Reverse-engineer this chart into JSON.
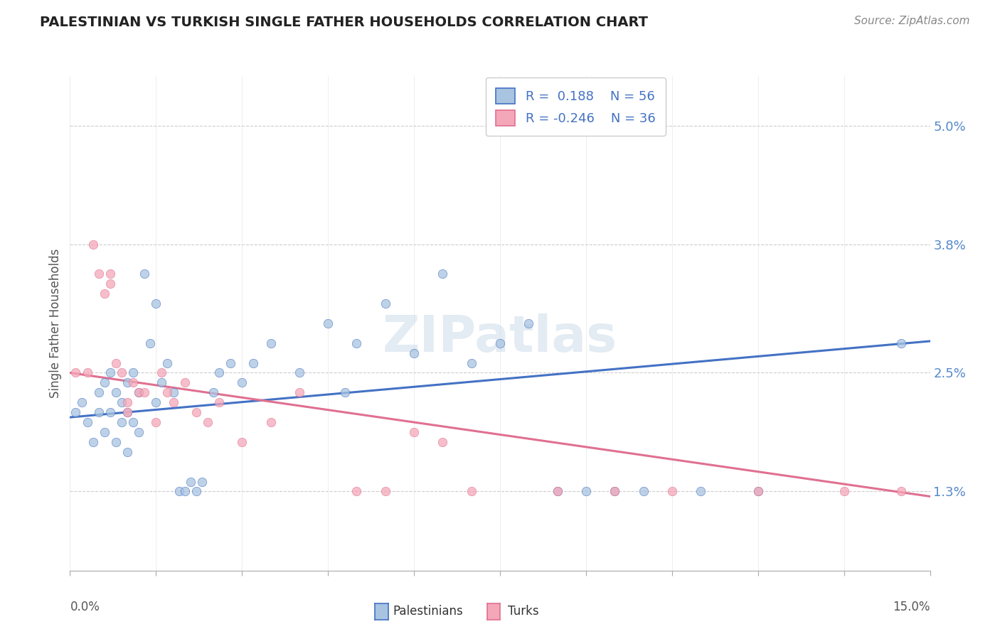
{
  "title": "PALESTINIAN VS TURKISH SINGLE FATHER HOUSEHOLDS CORRELATION CHART",
  "source": "Source: ZipAtlas.com",
  "ylabel": "Single Father Households",
  "yticks": [
    1.3,
    2.5,
    3.8,
    5.0
  ],
  "xlim": [
    0.0,
    15.0
  ],
  "ylim": [
    0.5,
    5.5
  ],
  "r_palestinian": 0.188,
  "n_palestinian": 56,
  "r_turkish": -0.246,
  "n_turkish": 36,
  "palestinian_color": "#a8c4e0",
  "turkish_color": "#f4a7b9",
  "palestinian_line_color": "#4472c4",
  "turkish_line_color": "#e07090",
  "watermark": "ZIPatlas",
  "palestinian_x": [
    0.1,
    0.2,
    0.3,
    0.4,
    0.5,
    0.5,
    0.6,
    0.6,
    0.7,
    0.7,
    0.8,
    0.8,
    0.9,
    0.9,
    1.0,
    1.0,
    1.0,
    1.1,
    1.1,
    1.2,
    1.2,
    1.3,
    1.4,
    1.5,
    1.5,
    1.6,
    1.7,
    1.8,
    1.9,
    2.0,
    2.1,
    2.2,
    2.3,
    2.5,
    2.6,
    2.8,
    3.0,
    3.2,
    3.5,
    4.0,
    4.5,
    4.8,
    5.0,
    5.5,
    6.0,
    6.5,
    7.0,
    7.5,
    8.0,
    8.5,
    9.0,
    9.5,
    10.0,
    11.0,
    12.0,
    14.5
  ],
  "palestinian_y": [
    2.1,
    2.2,
    2.0,
    1.8,
    2.1,
    2.3,
    1.9,
    2.4,
    2.1,
    2.5,
    1.8,
    2.3,
    2.0,
    2.2,
    1.7,
    2.1,
    2.4,
    2.0,
    2.5,
    1.9,
    2.3,
    3.5,
    2.8,
    2.2,
    3.2,
    2.4,
    2.6,
    2.3,
    1.3,
    1.3,
    1.4,
    1.3,
    1.4,
    2.3,
    2.5,
    2.6,
    2.4,
    2.6,
    2.8,
    2.5,
    3.0,
    2.3,
    2.8,
    3.2,
    2.7,
    3.5,
    2.6,
    2.8,
    3.0,
    1.3,
    1.3,
    1.3,
    1.3,
    1.3,
    1.3,
    2.8
  ],
  "turkish_x": [
    0.1,
    0.3,
    0.4,
    0.5,
    0.6,
    0.7,
    0.7,
    0.8,
    0.9,
    1.0,
    1.0,
    1.1,
    1.2,
    1.3,
    1.5,
    1.6,
    1.7,
    1.8,
    2.0,
    2.2,
    2.4,
    2.6,
    3.0,
    3.5,
    4.0,
    5.0,
    5.5,
    6.0,
    6.5,
    7.0,
    8.5,
    9.5,
    10.5,
    12.0,
    13.5,
    14.5
  ],
  "turkish_y": [
    2.5,
    2.5,
    3.8,
    3.5,
    3.3,
    3.5,
    3.4,
    2.6,
    2.5,
    2.2,
    2.1,
    2.4,
    2.3,
    2.3,
    2.0,
    2.5,
    2.3,
    2.2,
    2.4,
    2.1,
    2.0,
    2.2,
    1.8,
    2.0,
    2.3,
    1.3,
    1.3,
    1.9,
    1.8,
    1.3,
    1.3,
    1.3,
    1.3,
    1.3,
    1.3,
    1.3
  ],
  "pal_line_start_y": 2.05,
  "pal_line_end_y": 2.82,
  "turk_line_start_y": 2.5,
  "turk_line_end_y": 1.25
}
